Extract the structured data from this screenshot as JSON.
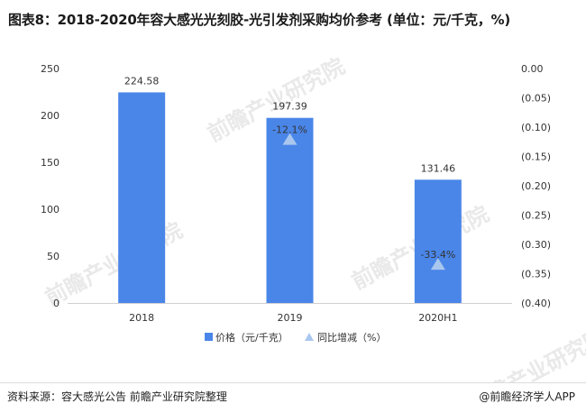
{
  "title": "图表8：2018-2020年容大感光光刻胶-光引发剂采购均价参考 (单位：元/千克，%)",
  "footer": {
    "source": "资料来源：容大感光公告 前瞻产业研究院整理",
    "brand": "@前瞻经济学人APP",
    "brand_icon": "logo-icon"
  },
  "watermark": "前瞻产业研究院",
  "colors": {
    "bar": "#4a86e8",
    "marker": "#a9c7ee",
    "axis": "#d0d0d0",
    "text": "#333333"
  },
  "chart_data": {
    "type": "bar",
    "categories": [
      "2018",
      "2019",
      "2020H1"
    ],
    "series": [
      {
        "name": "价格（元/千克）",
        "type": "bar",
        "axis": "left",
        "values": [
          224.58,
          197.39,
          131.46
        ],
        "labels": [
          "224.58",
          "197.39",
          "131.46"
        ]
      },
      {
        "name": "同比增减（%）",
        "type": "marker",
        "axis": "right",
        "values": [
          null,
          -0.121,
          -0.334
        ],
        "labels": [
          "",
          "-12.1%",
          "-33.4%"
        ]
      }
    ],
    "y_left": {
      "min": 0,
      "max": 250,
      "step": 50,
      "tick_labels": [
        "0",
        "50",
        "100",
        "150",
        "200",
        "250"
      ]
    },
    "y_right": {
      "min": -0.4,
      "max": 0.0,
      "step": 0.05,
      "tick_labels": [
        "(0.40)",
        "(0.35)",
        "(0.30)",
        "(0.25)",
        "(0.20)",
        "(0.15)",
        "(0.10)",
        "(0.05)",
        "0.00"
      ]
    },
    "legend_position": "bottom",
    "grid": false
  }
}
